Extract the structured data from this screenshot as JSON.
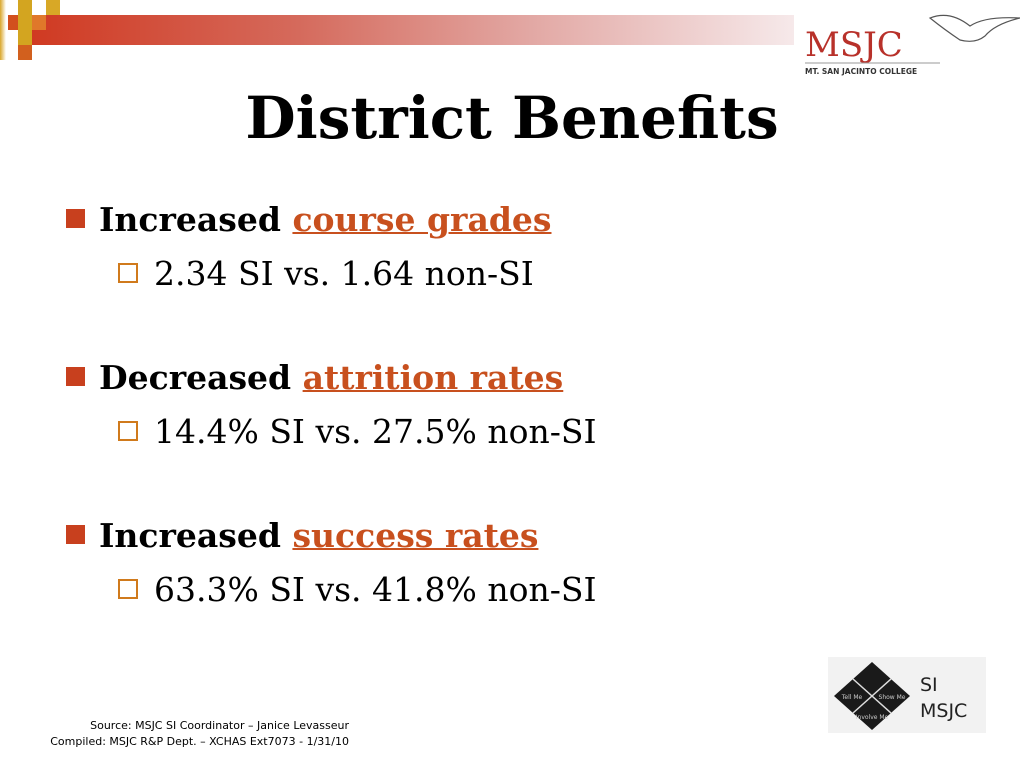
{
  "logo": {
    "name": "MSJC",
    "tagline": "MT. SAN JACINTO COLLEGE"
  },
  "title": "District Benefits",
  "bullets": [
    {
      "prefix": "Increased ",
      "link": "course grades",
      "sub": "2.34 SI vs. 1.64 non-SI"
    },
    {
      "prefix": "Decreased ",
      "link": "attrition rates",
      "sub": "14.4% SI vs. 27.5% non-SI"
    },
    {
      "prefix": "Increased ",
      "link": "success rates",
      "sub": "63.3% SI vs. 41.8% non-SI"
    }
  ],
  "footer": {
    "source": "Source: MSJC SI Coordinator – Janice Levasseur",
    "compiled": "Compiled: MSJC R&P Dept. – XCHAS  Ext7073 -  1/31/10"
  },
  "si_logo": {
    "tell": "Tell Me",
    "show": "Show Me",
    "involve": "Involve Me",
    "line1": "SI",
    "line2": "MSJC"
  },
  "colors": {
    "bullet": "#c8401e",
    "link": "#c8501e",
    "sub_bullet": "#d07a1c"
  }
}
